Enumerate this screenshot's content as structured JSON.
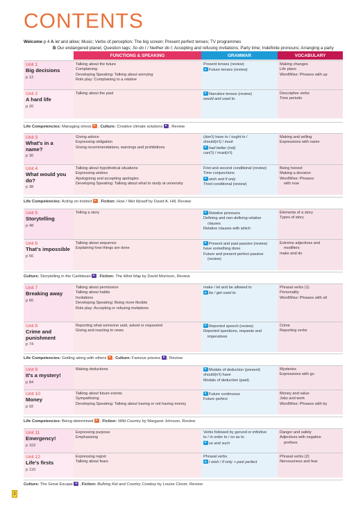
{
  "title": "CONTENTS",
  "welcome": {
    "label": "Welcome",
    "page": "p 4",
    "a": "A",
    "a_text_pre": " ",
    "a_italic": "let",
    "a_text": " and allow; Music; Verbs of perception; The big screen; Present perfect tenses; TV programmes",
    "b": "B",
    "b_text_pre": " Our endangered planet; Question tags; ",
    "b_italic": "So do I / Neither do I",
    "b_text": "; Accepting and refusing invitations; Party time; Indefinite pronouns; Arranging a party"
  },
  "headers": [
    "FUNCTIONS & SPEAKING",
    "GRAMMAR",
    "VOCABULARY"
  ],
  "units": [
    {
      "no": "Unit 1",
      "title": "Big decisions",
      "page": "p 12",
      "func": [
        "Talking about the future",
        "Complaining",
        "Developing Speaking: Talking about worrying",
        "Role play: Complaining to a relative"
      ],
      "gram": [
        "Present tenses (review)",
        "Future tenses (review)"
      ],
      "vocab": [
        "Making changes",
        "Life plans",
        "WordWise: Phrases with up"
      ]
    },
    {
      "no": "Unit 2",
      "title": "A hard life",
      "page": "p 20",
      "func": [
        "Talking about the past"
      ],
      "gram": [
        "Narrative tenses (review)",
        "would and used to"
      ],
      "vocab": [
        "Descriptive verbs",
        "Time periods"
      ]
    },
    {
      "no": "Unit 3",
      "title": "What's in a name?",
      "page": "p 30",
      "func": [
        "Giving advice",
        "Expressing obligation",
        "Giving recommendations, warnings and prohibitions"
      ],
      "gram": [
        "(don't) have to / ought to /",
        "should(n't) / must",
        "had better (not)",
        "can('t) / must(n't)"
      ],
      "vocab": [
        "Making and selling",
        "Expressions with name"
      ]
    },
    {
      "no": "Unit 4",
      "title": "What would you do?",
      "page": "p 38",
      "func": [
        "Talking about hypothetical situations",
        "Expressing wishes",
        "Apologising and accepting apologies",
        "Developing Speaking: Talking about what to study at university"
      ],
      "gram": [
        "First and second conditional (review)",
        "Time conjunctions",
        "wish and if only",
        "Third conditional (review)"
      ],
      "vocab": [
        "Being honest",
        "Making a decision",
        "WordWise: Phrases",
        "with now"
      ]
    },
    {
      "no": "Unit 5",
      "title": "Storytelling",
      "page": "p 48",
      "func": [
        "Telling a story"
      ],
      "gram": [
        "Relative pronouns",
        "Defining and non-defining relative",
        "clauses",
        "Relative clauses with which"
      ],
      "vocab": [
        "Elements of a story",
        "Types of story"
      ]
    },
    {
      "no": "Unit 6",
      "title": "That's impossible",
      "page": "p 56",
      "func": [
        "Talking about sequence",
        "Explaining how things are done"
      ],
      "gram": [
        "Present and past passive (review)",
        "have something done",
        "Future and present perfect passive",
        "(review)"
      ],
      "vocab": [
        "Extreme adjectives and",
        "modifiers",
        "make and do"
      ]
    },
    {
      "no": "Unit 7",
      "title": "Breaking away",
      "page": "p 66",
      "func": [
        "Talking about permission",
        "Talking about habits",
        "Invitations",
        "Developing Speaking: Being more flexible",
        "Role play: Accepting or refusing invitations"
      ],
      "gram": [
        "make / let and be allowed to",
        "be / get used to"
      ],
      "vocab": [
        "Phrasal verbs (1)",
        "Personality",
        "WordWise: Phrases with all"
      ]
    },
    {
      "no": "Unit 8",
      "title": "Crime and punishment",
      "page": "p 74",
      "func": [
        "Reporting what someone said, asked or requested",
        "Giving and reacting to news"
      ],
      "gram": [
        "Reported speech (review)",
        "Reported questions, requests and",
        "imperatives"
      ],
      "vocab": [
        "Crime",
        "Reporting verbs"
      ]
    },
    {
      "no": "Unit 9",
      "title": "It's a mystery!",
      "page": "p 84",
      "func": [
        "Making deductions"
      ],
      "gram": [
        "Modals of deduction (present)",
        "should(n't) have",
        "Modals of deduction (past)"
      ],
      "vocab": [
        "Mysteries",
        "Expressions with go"
      ]
    },
    {
      "no": "Unit 10",
      "title": "Money",
      "page": "p 92",
      "func": [
        "Talking about future events",
        "Sympathising",
        "Developing Speaking: Talking about having or not having money"
      ],
      "gram": [
        "Future continuous",
        "Future perfect"
      ],
      "vocab": [
        "Money and value",
        "Jobs and work",
        "WordWise: Phrases with by"
      ]
    },
    {
      "no": "Unit 11",
      "title": "Emergency!",
      "page": "p 102",
      "func": [
        "Expressing purpose",
        "Emphasising"
      ],
      "gram": [
        "Verbs followed by gerund or infinitive",
        "to / in order to / so as to",
        "so and such"
      ],
      "vocab": [
        "Danger and safety",
        "Adjectives with negative",
        "prefixes"
      ]
    },
    {
      "no": "Unit 12",
      "title": "Life's firsts",
      "page": "p 110",
      "func": [
        "Expressing regret",
        "Talking about fears"
      ],
      "gram": [
        "Phrasal verbs",
        "I wish / If only + past perfect"
      ],
      "vocab": [
        "Phrasal verbs (2)",
        "Nervousness and fear"
      ]
    }
  ],
  "competencies": [
    {
      "parts": [
        "Life Competencies:",
        " Managing stress ",
        ", ",
        "Culture:",
        " Creative climate solutions ",
        ", Review"
      ]
    },
    {
      "parts": [
        "Life Competencies:",
        " Acting on instinct ",
        ", ",
        "Fiction:",
        " ",
        "How I Met Myself",
        " by David A. Hill, Review"
      ]
    },
    {
      "parts": [
        "Culture:",
        " Storytelling in the Caribbean ",
        ", ",
        "Fiction:",
        " ",
        "The Mind Map",
        " by David Morrison, Review"
      ]
    },
    {
      "parts": [
        "Life Competencies:",
        " Getting along with others ",
        ", ",
        "Culture:",
        " Famous prisons ",
        ", Review"
      ]
    },
    {
      "parts": [
        "Life Competencies:",
        " Being determined ",
        ", ",
        "Fiction:",
        " ",
        "Wild Country",
        " by Margaret Johnson, Review"
      ]
    },
    {
      "parts": [
        "Culture:",
        " The Great Escape ",
        ", ",
        "Fiction:",
        " ",
        "Bullring Kid and Country Cowboy",
        " by Louise Clover, Review"
      ]
    }
  ],
  "page_number": "2",
  "colors": {
    "title": "#e8703a",
    "functions": "#e33564",
    "grammar": "#1d9bd7",
    "vocabulary": "#c2184f"
  }
}
